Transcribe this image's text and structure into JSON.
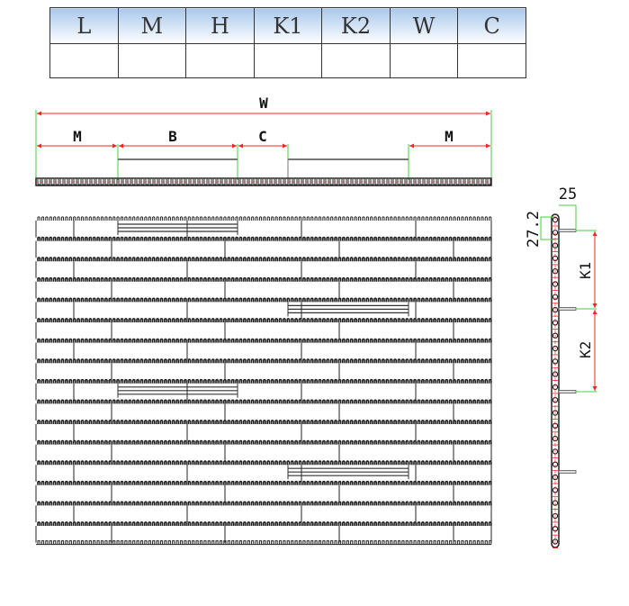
{
  "spec_table": {
    "headers": [
      "L",
      "M",
      "H",
      "K1",
      "K2",
      "W",
      "C"
    ],
    "values": [
      "",
      "",
      "",
      "",
      "",
      "",
      ""
    ]
  },
  "top_view": {
    "labels": {
      "width": "W",
      "margin_left": "M",
      "flight_width": "B",
      "gap": "C",
      "margin_right": "M"
    }
  },
  "side_view": {
    "labels": {
      "flight_height": "25",
      "pitch": "27.2",
      "spacing_1": "K1",
      "spacing_2": "K2"
    }
  },
  "colors": {
    "dimension": "#ff2020",
    "extension": "#44cc44",
    "belt": "#222222",
    "header": "#a8c8ec"
  },
  "plan_view": {
    "rows": 16,
    "flight_rows": [
      0,
      4,
      8,
      12
    ]
  }
}
